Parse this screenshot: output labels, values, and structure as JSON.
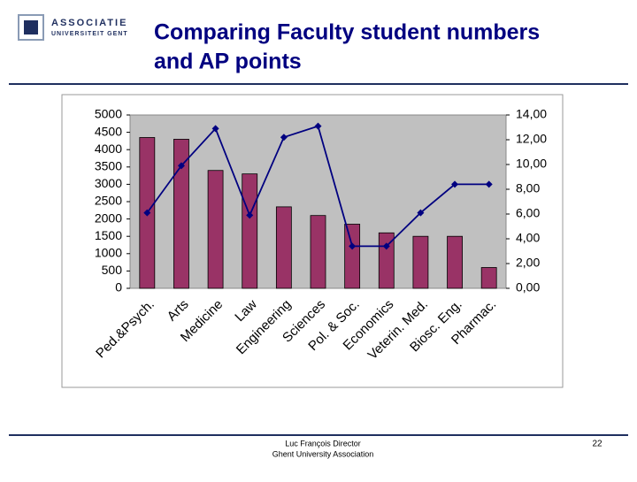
{
  "header": {
    "logo_top": "ASSOCIATIE",
    "logo_bottom": "UNIVERSITEIT GENT",
    "title": [
      "Comparing Faculty student numbers",
      "and AP points"
    ]
  },
  "chart_data": {
    "type": "bar",
    "categories": [
      "Ped.&Psych.",
      "Arts",
      "Medicine",
      "Law",
      "Engineering",
      "Sciences",
      "Pol. & Soc.",
      "Economics",
      "Veterin. Med.",
      "Biosc. Eng.",
      "Pharmac."
    ],
    "series": [
      {
        "type": "bar",
        "color": "#993366",
        "values": [
          4350,
          4300,
          3400,
          3300,
          2350,
          2100,
          1850,
          1600,
          1500,
          1500,
          600
        ]
      },
      {
        "type": "line",
        "color": "#000080",
        "axis": "y2",
        "values": [
          6.1,
          9.9,
          12.9,
          5.9,
          12.2,
          13.1,
          3.4,
          3.4,
          6.1,
          8.4,
          8.4
        ]
      }
    ],
    "ylim": [
      0,
      5000
    ],
    "yticks": [
      0,
      500,
      1000,
      1500,
      2000,
      2500,
      3000,
      3500,
      4000,
      4500,
      5000
    ],
    "y2lim": [
      0,
      14
    ],
    "y2ticks": [
      {
        "value": 0,
        "label": "0,00"
      },
      {
        "value": 2,
        "label": "2,00"
      },
      {
        "value": 4,
        "label": "4,00"
      },
      {
        "value": 6,
        "label": "6,00"
      },
      {
        "value": 8,
        "label": "8,00"
      },
      {
        "value": 10,
        "label": "10,00"
      },
      {
        "value": 12,
        "label": "12,00"
      },
      {
        "value": 14,
        "label": "14,00"
      }
    ],
    "plot_background": "#c0c0c0"
  },
  "footer": {
    "lines": [
      "Luc François Director",
      "Ghent University Association"
    ],
    "page": "22"
  }
}
